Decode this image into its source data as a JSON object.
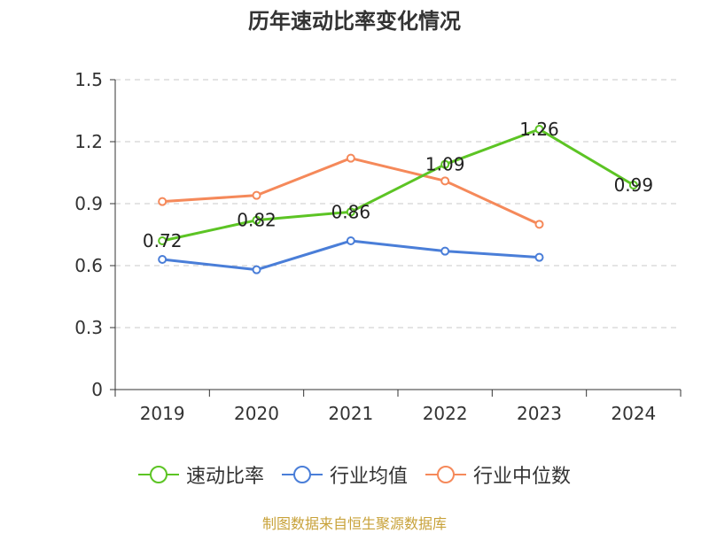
{
  "title": "历年速动比率变化情况",
  "source": "制图数据来自恒生聚源数据库",
  "colors": {
    "speed_ratio": "#5cc424",
    "industry_avg": "#4a7ed8",
    "industry_median": "#f5895a",
    "grid": "#c8c8c8",
    "axis": "#333333",
    "source": "#c8a23a"
  },
  "legend": [
    {
      "name": "速动比率",
      "color": "#5cc424"
    },
    {
      "name": "行业均值",
      "color": "#4a7ed8"
    },
    {
      "name": "行业中位数",
      "color": "#f5895a"
    }
  ],
  "chart_data": {
    "type": "line",
    "title": "历年速动比率变化情况",
    "categories": [
      "2019",
      "2020",
      "2021",
      "2022",
      "2023",
      "2024"
    ],
    "ylim": [
      0,
      1.5
    ],
    "yticks": [
      "0",
      "0.3",
      "0.6",
      "0.9",
      "1.2",
      "1.5"
    ],
    "grid": true,
    "legend_position": "bottom",
    "series": [
      {
        "name": "速动比率",
        "color": "#5cc424",
        "values": [
          0.72,
          0.82,
          0.86,
          1.09,
          1.26,
          0.99
        ],
        "labels": [
          "0.72",
          "0.82",
          "0.86",
          "1.09",
          "1.26",
          "0.99"
        ]
      },
      {
        "name": "行业均值",
        "color": "#4a7ed8",
        "values": [
          0.63,
          0.58,
          0.72,
          0.67,
          0.64,
          null
        ]
      },
      {
        "name": "行业中位数",
        "color": "#f5895a",
        "values": [
          0.91,
          0.94,
          1.12,
          1.01,
          0.8,
          null
        ]
      }
    ]
  }
}
